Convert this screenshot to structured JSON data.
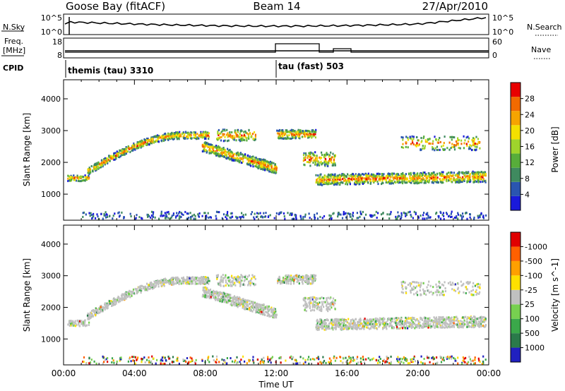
{
  "header": {
    "title_left": "Goose Bay (fitACF)",
    "title_mid": "Beam 14",
    "title_right": "27/Apr/2010"
  },
  "strip_noise": {
    "left_label": "N.Sky",
    "right_label": "N.Search",
    "left_ticks": [
      "10^5",
      "10^0"
    ],
    "right_ticks": [
      "10^5",
      "10^0"
    ]
  },
  "strip_freq": {
    "left_label_1": "Freq.",
    "left_label_2": "[MHz]",
    "right_label": "Nave",
    "left_ticks": [
      "18",
      "8"
    ],
    "right_ticks": [
      "60",
      "0"
    ]
  },
  "cpid": {
    "label": "CPID",
    "modes": [
      {
        "name": "themis (tau) 3310",
        "start_hour": 0
      },
      {
        "name": "tau (fast) 503",
        "start_hour": 12
      }
    ]
  },
  "chart_data": [
    {
      "type": "heatmap",
      "quantity": "power",
      "ylabel": "Slant Range [km]",
      "yticks": [
        1000,
        2000,
        3000,
        4000
      ],
      "ylim": [
        180,
        4600
      ],
      "xlim": [
        0,
        24
      ],
      "colorbar": {
        "label": "Power [dB]",
        "ticks": [
          "4",
          "8",
          "12",
          "16",
          "20",
          "24",
          "28"
        ],
        "colors": [
          "#1a1adb",
          "#2a55b0",
          "#3f8a5f",
          "#57ad3a",
          "#9fd42c",
          "#f4e000",
          "#f6a400",
          "#f26a00",
          "#e80000"
        ]
      }
    },
    {
      "type": "heatmap",
      "quantity": "velocity",
      "ylabel": "Slant Range [km]",
      "yticks": [
        1000,
        2000,
        3000,
        4000
      ],
      "ylim": [
        180,
        4600
      ],
      "xlim": [
        0,
        24
      ],
      "xlabel": "Time UT",
      "xticks": [
        "00:00",
        "04:00",
        "08:00",
        "12:00",
        "16:00",
        "20:00",
        "00:00"
      ],
      "colorbar": {
        "label": "Velocity [m s^-1]",
        "ticks": [
          "1000",
          "500",
          "100",
          "25",
          "-25",
          "-100",
          "-500",
          "-1000"
        ],
        "colors": [
          "#2020c0",
          "#2a7a4a",
          "#3aa84a",
          "#77d050",
          "#c0c0c0",
          "#ffe000",
          "#ffa000",
          "#ff6000",
          "#e00000"
        ]
      }
    }
  ]
}
